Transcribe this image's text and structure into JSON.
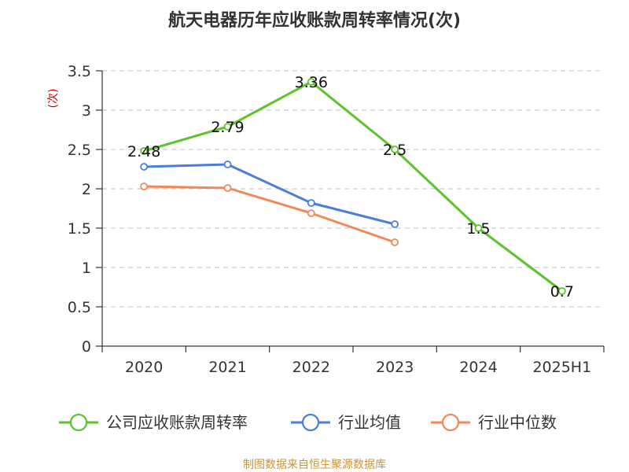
{
  "chart_data": {
    "type": "line",
    "title": "航天电器历年应收账款周转率情况(次)",
    "ylabel": "(次)",
    "xlabel": "",
    "categories": [
      "2020",
      "2021",
      "2022",
      "2023",
      "2024",
      "2025H1"
    ],
    "ylim": [
      0,
      3.5
    ],
    "yticks": [
      "0",
      "0.5",
      "1",
      "1.5",
      "2",
      "2.5",
      "3",
      "3.5"
    ],
    "grid": true,
    "legend_position": "bottom",
    "series": [
      {
        "name": "公司应收账款周转率",
        "color": "#5cc42b",
        "values": [
          2.48,
          2.79,
          3.36,
          2.5,
          1.5,
          0.7
        ],
        "labels": [
          "2.48",
          "2.79",
          "3.36",
          "2.5",
          "1.5",
          "0.7"
        ]
      },
      {
        "name": "行业均值",
        "color": "#4a7fd8",
        "values": [
          2.28,
          2.31,
          1.82,
          1.55,
          null,
          null
        ]
      },
      {
        "name": "行业中位数",
        "color": "#f4875a",
        "values": [
          2.03,
          2.01,
          1.69,
          1.32,
          null,
          null
        ]
      }
    ],
    "source": "制图数据来自恒生聚源数据库"
  }
}
